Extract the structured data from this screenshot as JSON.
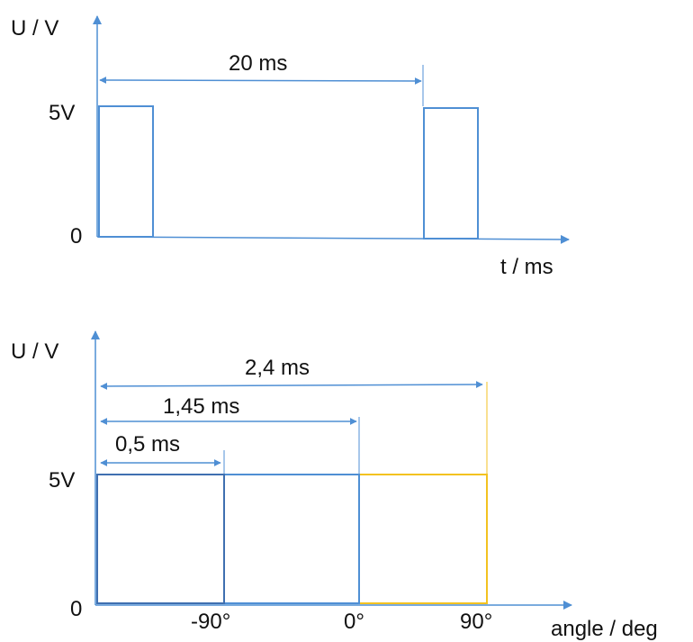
{
  "colors": {
    "axis": "#4f8fd4",
    "pulse": "#4f8fd4",
    "pulse_dark": "#3f6fb0",
    "pulse_yellow": "#f3c220",
    "text": "#111111"
  },
  "top_diagram": {
    "y_axis_label": "U / V",
    "x_axis_label": "t / ms",
    "level_high": "5V",
    "level_low": "0",
    "period_label": "20 ms"
  },
  "bottom_diagram": {
    "y_axis_label": "U / V",
    "x_axis_label": "angle / deg",
    "level_high": "5V",
    "level_low": "0",
    "width_labels": [
      "0,5 ms",
      "1,45 ms",
      "2,4 ms"
    ],
    "angle_labels": [
      "-90°",
      "0°",
      "90°"
    ]
  }
}
